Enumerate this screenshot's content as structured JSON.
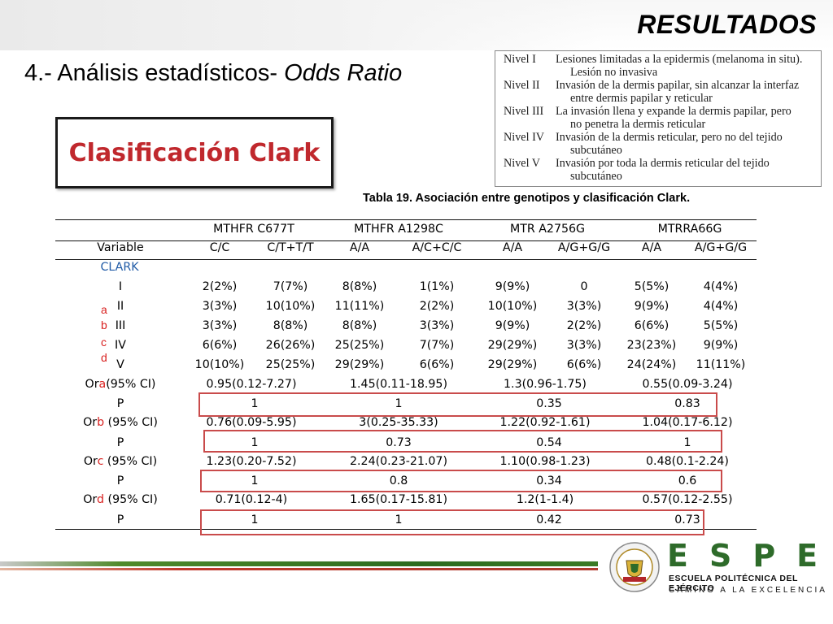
{
  "header": {
    "section_title": "RESULTADOS"
  },
  "subtitle": {
    "prefix": "4.- Análisis estadísticos- ",
    "italic": "Odds Ratio"
  },
  "clark_label": "Clasificación Clark",
  "levels": [
    {
      "key": "Nivel I",
      "line1": "Lesiones limitadas a la epidermis (melanoma in situ).",
      "line2": "Lesión no invasiva"
    },
    {
      "key": "Nivel II",
      "line1": "Invasión de la dermis papilar, sin alcanzar la interfaz",
      "line2": "entre dermis papilar y reticular"
    },
    {
      "key": "Nivel III",
      "line1": "La invasión llena y expande la dermis papilar, pero",
      "line2": "no penetra la dermis reticular"
    },
    {
      "key": "Nivel IV",
      "line1": "Invasión de la dermis reticular, pero no del tejido",
      "line2": "subcutáneo"
    },
    {
      "key": "Nivel V",
      "line1": "Invasión por toda la dermis reticular del tejido",
      "line2": "subcutáneo"
    }
  ],
  "caption": "Tabla 19. Asociación entre genotipos y clasificación Clark.",
  "table": {
    "gene_headers": [
      "MTHFR C677T",
      "MTHFR A1298C",
      "MTR A2756G",
      "MTRRA66G"
    ],
    "variable_label": "Variable",
    "genotype_headers": [
      "C/C",
      "C/T+T/T",
      "A/A",
      "A/C+C/C",
      "A/A",
      "A/G+G/G",
      "A/A",
      "A/G+G/G"
    ],
    "group_label": "CLARK",
    "levels": [
      {
        "label": "I",
        "values": [
          "2(2%)",
          "7(7%)",
          "8(8%)",
          "1(1%)",
          "9(9%)",
          "0",
          "5(5%)",
          "4(4%)"
        ]
      },
      {
        "label": "II",
        "values": [
          "3(3%)",
          "10(10%)",
          "11(11%)",
          "2(2%)",
          "10(10%)",
          "3(3%)",
          "9(9%)",
          "4(4%)"
        ]
      },
      {
        "label": "III",
        "values": [
          "3(3%)",
          "8(8%)",
          "8(8%)",
          "3(3%)",
          "9(9%)",
          "2(2%)",
          "6(6%)",
          "5(5%)"
        ]
      },
      {
        "label": "IV",
        "values": [
          "6(6%)",
          "26(26%)",
          "25(25%)",
          "7(7%)",
          "29(29%)",
          "3(3%)",
          "23(23%)",
          "9(9%)"
        ]
      },
      {
        "label": "V",
        "values": [
          "10(10%)",
          "25(25%)",
          "29(29%)",
          "6(6%)",
          "29(29%)",
          "6(6%)",
          "24(24%)",
          "11(11%)"
        ]
      }
    ],
    "side_letters": [
      "a",
      "b",
      "c",
      "d"
    ],
    "or_rows": [
      {
        "pre": "Or",
        "letter": "a",
        "post": "(95% CI)",
        "values": [
          "0.95(0.12-7.27)",
          "1.45(0.11-18.95)",
          "1.3(0.96-1.75)",
          "0.55(0.09-3.24)"
        ],
        "p_label": "P",
        "p_values": [
          "1",
          "1",
          "0.35",
          "0.83"
        ]
      },
      {
        "pre": "Or",
        "letter": "b",
        "post": " (95% CI)",
        "values": [
          "0.76(0.09-5.95)",
          "3(0.25-35.33)",
          "1.22(0.92-1.61)",
          "1.04(0.17-6.12)"
        ],
        "p_label": "P",
        "p_values": [
          "1",
          "0.73",
          "0.54",
          "1"
        ]
      },
      {
        "pre": "Or",
        "letter": "c",
        "post": " (95% CI)",
        "values": [
          "1.23(0.20-7.52)",
          "2.24(0.23-21.07)",
          "1.10(0.98-1.23)",
          "0.48(0.1-2.24)"
        ],
        "p_label": "P",
        "p_values": [
          "1",
          "0.8",
          "0.34",
          "0.6"
        ]
      },
      {
        "pre": "Or",
        "letter": "d",
        "post": " (95% CI)",
        "values": [
          "0.71(0.12-4)",
          "1.65(0.17-15.81)",
          "1.2(1-1.4)",
          "0.57(0.12-2.55)"
        ],
        "p_label": "P",
        "p_values": [
          "1",
          "1",
          "0.42",
          "0.73"
        ]
      }
    ]
  },
  "logo": {
    "letters": "ESPE",
    "line1": "ESCUELA POLITÉCNICA DEL EJÉRCITO",
    "line2": "CAMINO A LA EXCELENCIA",
    "seal_text": "ESCUELA POLITÉCNICA DEL EJÉRCITO · ECUADOR"
  },
  "colors": {
    "accent_red": "#c0282d",
    "clark_blue": "#1f5aa6",
    "logo_green": "#2e6b2a",
    "box_red": "#c94b4b"
  }
}
